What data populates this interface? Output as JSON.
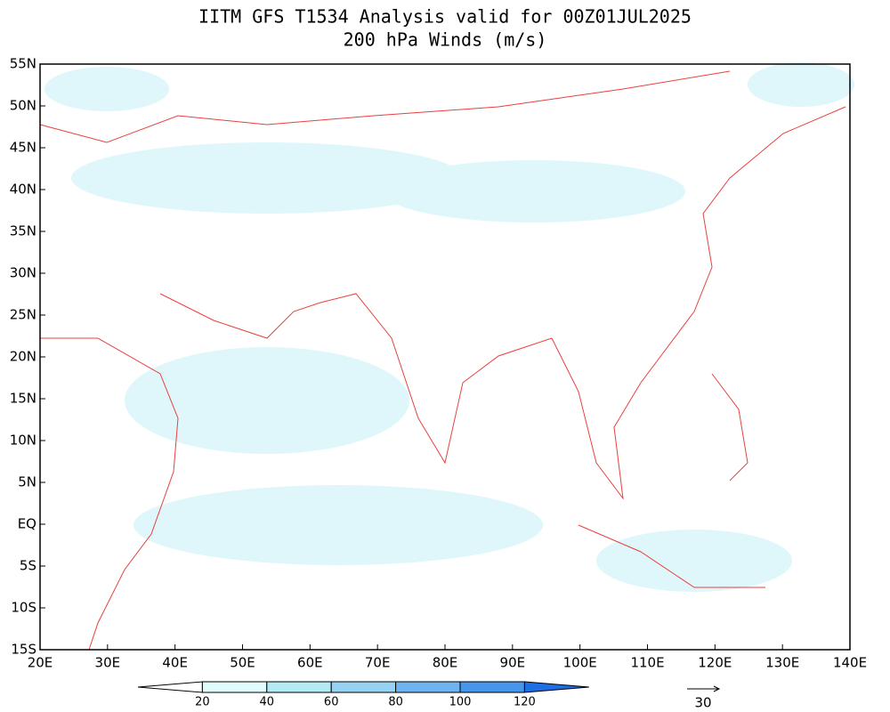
{
  "header": {
    "title": "IITM GFS T1534 Analysis valid for 00Z01JUL2025",
    "subtitle": "200 hPa Winds (m/s)"
  },
  "map": {
    "lon_labels": [
      "20E",
      "30E",
      "40E",
      "50E",
      "60E",
      "70E",
      "80E",
      "90E",
      "100E",
      "110E",
      "120E",
      "130E",
      "140E"
    ],
    "lat_labels": [
      "55N",
      "50N",
      "45N",
      "40N",
      "35N",
      "30N",
      "25N",
      "20N",
      "15N",
      "10N",
      "5N",
      "EQ",
      "5S",
      "10S",
      "15S"
    ]
  },
  "colorbar": {
    "labels": [
      "20",
      "40",
      "60",
      "80",
      "100",
      "120"
    ],
    "colors": [
      "#ffffff",
      "#e0fcfc",
      "#b4eaf4",
      "#96d2f2",
      "#6eb4f0",
      "#4696ec",
      "#1e6ee6"
    ]
  },
  "reference_vector": {
    "label": "30"
  }
}
